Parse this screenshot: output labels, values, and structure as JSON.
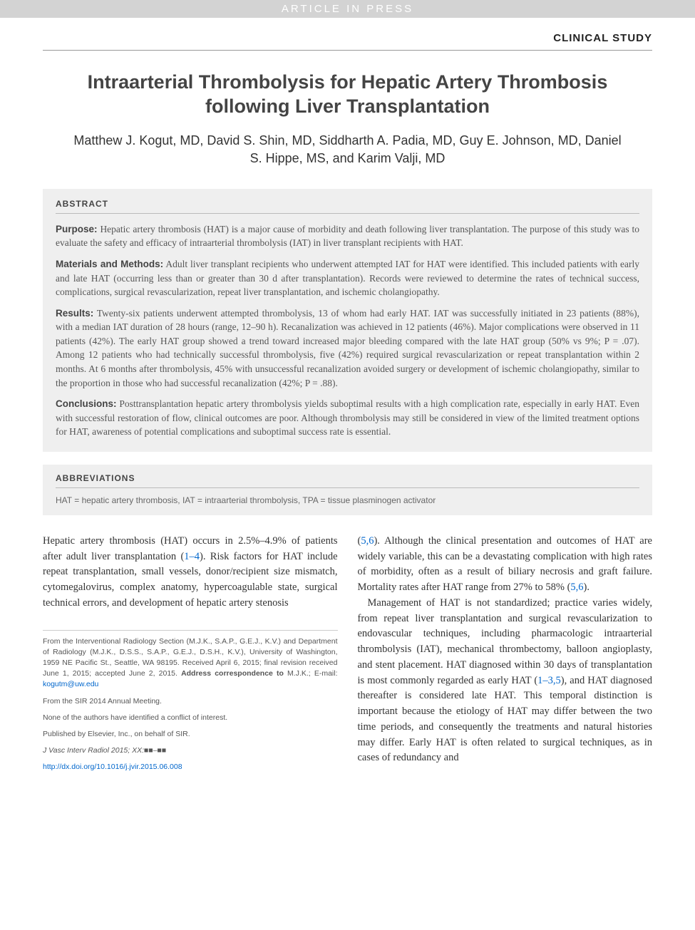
{
  "banner": "ARTICLE IN PRESS",
  "study_type": "CLINICAL STUDY",
  "title": "Intraarterial Thrombolysis for Hepatic Artery Thrombosis following Liver Transplantation",
  "authors": "Matthew J. Kogut, MD, David S. Shin, MD, Siddharth A. Padia, MD, Guy E. Johnson, MD, Daniel S. Hippe, MS, and Karim Valji, MD",
  "abstract": {
    "header": "ABSTRACT",
    "sections": [
      {
        "label": "Purpose:",
        "text": "Hepatic artery thrombosis (HAT) is a major cause of morbidity and death following liver transplantation. The purpose of this study was to evaluate the safety and efficacy of intraarterial thrombolysis (IAT) in liver transplant recipients with HAT."
      },
      {
        "label": "Materials and Methods:",
        "text": "Adult liver transplant recipients who underwent attempted IAT for HAT were identified. This included patients with early and late HAT (occurring less than or greater than 30 d after transplantation). Records were reviewed to determine the rates of technical success, complications, surgical revascularization, repeat liver transplantation, and ischemic cholangiopathy."
      },
      {
        "label": "Results:",
        "text": "Twenty-six patients underwent attempted thrombolysis, 13 of whom had early HAT. IAT was successfully initiated in 23 patients (88%), with a median IAT duration of 28 hours (range, 12–90 h). Recanalization was achieved in 12 patients (46%). Major complications were observed in 11 patients (42%). The early HAT group showed a trend toward increased major bleeding compared with the late HAT group (50% vs 9%; P = .07). Among 12 patients who had technically successful thrombolysis, five (42%) required surgical revascularization or repeat transplantation within 2 months. At 6 months after thrombolysis, 45% with unsuccessful recanalization avoided surgery or development of ischemic cholangiopathy, similar to the proportion in those who had successful recanalization (42%; P = .88)."
      },
      {
        "label": "Conclusions:",
        "text": "Posttransplantation hepatic artery thrombolysis yields suboptimal results with a high complication rate, especially in early HAT. Even with successful restoration of flow, clinical outcomes are poor. Although thrombolysis may still be considered in view of the limited treatment options for HAT, awareness of potential complications and suboptimal success rate is essential."
      }
    ]
  },
  "abbreviations": {
    "header": "ABBREVIATIONS",
    "text": "HAT = hepatic artery thrombosis, IAT = intraarterial thrombolysis, TPA = tissue plasminogen activator"
  },
  "body": {
    "left_para1_pre": "Hepatic artery thrombosis (HAT) occurs in 2.5%–4.9% of patients after adult liver transplantation (",
    "left_para1_ref1": "1–4",
    "left_para1_post": "). Risk factors for HAT include repeat transplantation, small vessels, donor/recipient size mismatch, cytomegalovirus, complex anatomy, hypercoagulable state, surgical technical errors, and development of hepatic artery stenosis",
    "right_para1_pre": "(",
    "right_para1_ref1": "5,6",
    "right_para1_mid1": "). Although the clinical presentation and outcomes of HAT are widely variable, this can be a devastating complication with high rates of morbidity, often as a result of biliary necrosis and graft failure. Mortality rates after HAT range from 27% to 58% (",
    "right_para1_ref2": "5,6",
    "right_para1_post": ").",
    "right_para2_pre": "Management of HAT is not standardized; practice varies widely, from repeat liver transplantation and surgical revascularization to endovascular techniques, including pharmacologic intraarterial thrombolysis (IAT), mechanical thrombectomy, balloon angioplasty, and stent placement. HAT diagnosed within 30 days of transplantation is most commonly regarded as early HAT (",
    "right_para2_ref1": "1–3,5",
    "right_para2_post": "), and HAT diagnosed thereafter is considered late HAT. This temporal distinction is important because the etiology of HAT may differ between the two time periods, and consequently the treatments and natural histories may differ. Early HAT is often related to surgical techniques, as in cases of redundancy and"
  },
  "footnotes": {
    "affiliation_pre": "From the Interventional Radiology Section (M.J.K., S.A.P., G.E.J., K.V.) and Department of Radiology (M.J.K., D.S.S., S.A.P., G.E.J., D.S.H., K.V.), University of Washington, 1959 NE Pacific St., Seattle, WA 98195. Received April 6, 2015; final revision received June 1, 2015; accepted June 2, 2015. ",
    "affiliation_bold": "Address correspondence to",
    "affiliation_post": " M.J.K.; E-mail: ",
    "email": "kogutm@uw.edu",
    "meeting": "From the SIR 2014 Annual Meeting.",
    "conflict": "None of the authors have identified a conflict of interest.",
    "publisher": "Published by Elsevier, Inc., on behalf of SIR.",
    "journal": "J Vasc Interv Radiol 2015; XX:■■–■■",
    "doi": "http://dx.doi.org/10.1016/j.jvir.2015.06.008"
  },
  "colors": {
    "banner_bg": "#d3d3d3",
    "banner_text": "#ffffff",
    "abstract_bg": "#efefef",
    "link": "#0066cc",
    "text": "#333333",
    "heading": "#444444"
  }
}
